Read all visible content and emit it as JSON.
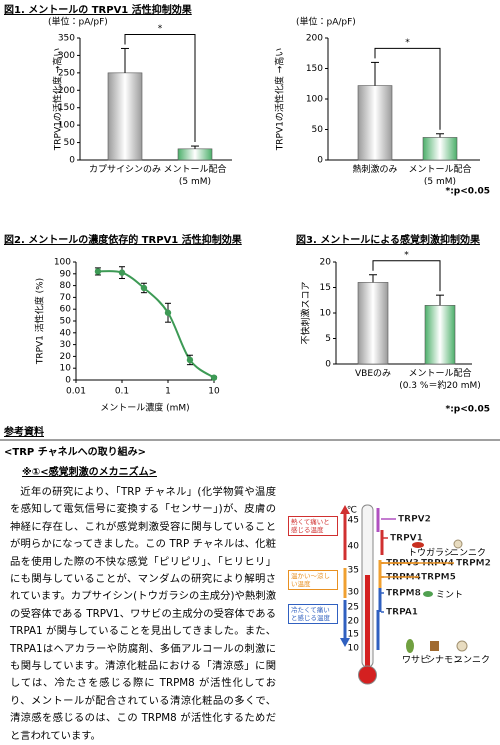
{
  "chart_data": [
    {
      "type": "bar",
      "title": "図1. メントールの TRPV1 活性抑制効果",
      "unit_label": "(単位：pA/pF)",
      "ylabel": "TRPV1の活性化度 →高い",
      "categories": [
        "カプサイシンのみ",
        "メントール配合\n(5 mM)"
      ],
      "values": [
        250,
        32
      ],
      "errors": [
        70,
        8
      ],
      "colors": [
        "#9a9a9a",
        "#4caf6a"
      ],
      "ylim": [
        0,
        350
      ],
      "yticks": [
        0,
        50,
        100,
        150,
        200,
        250,
        300,
        350
      ],
      "annotation": "*"
    },
    {
      "type": "bar",
      "unit_label": "(単位：pA/pF)",
      "ylabel": "TRPV1の活性化度 →高い",
      "categories": [
        "熱刺激のみ",
        "メントール配合\n(5 mM)"
      ],
      "values": [
        122,
        37
      ],
      "errors": [
        38,
        6
      ],
      "colors": [
        "#9a9a9a",
        "#4caf6a"
      ],
      "ylim": [
        0,
        200
      ],
      "yticks": [
        0,
        50,
        100,
        150,
        200
      ],
      "annotation": "*",
      "note": "*:p<0.05"
    },
    {
      "type": "line",
      "title": "図2. メントールの濃度依存的 TRPV1 活性抑制効果",
      "xlabel": "メントール濃度 (mM)",
      "ylabel": "TRPV1 活性化度 (%)",
      "log_x": true,
      "series": [
        {
          "color": "#3d9a55",
          "x": [
            0.03,
            0.1,
            0.3,
            1,
            3,
            10
          ],
          "values": [
            92,
            91,
            78,
            57,
            17,
            2
          ],
          "errors": [
            3,
            5,
            4,
            8,
            4,
            1
          ]
        }
      ],
      "xlim": [
        0.01,
        10
      ],
      "xticks": [
        0.01,
        0.1,
        1,
        10
      ],
      "ylim": [
        0,
        100
      ],
      "yticks": [
        0,
        10,
        20,
        30,
        40,
        50,
        60,
        70,
        80,
        90,
        100
      ]
    },
    {
      "type": "bar",
      "title": "図3. メントールによる感覚刺激抑制効果",
      "ylabel": "不快刺激スコア",
      "categories": [
        "VBEのみ",
        "メントール配合\n(0.3 %＝約20 mM)"
      ],
      "values": [
        16,
        11.5
      ],
      "errors": [
        1.5,
        2
      ],
      "colors": [
        "#9a9a9a",
        "#4caf6a"
      ],
      "ylim": [
        0,
        20
      ],
      "yticks": [
        0,
        5,
        10,
        15,
        20
      ],
      "annotation": "*",
      "note": "*:p<0.05"
    }
  ],
  "reference": {
    "heading": "参考資料",
    "subheading": "<TRP チャネルへの取り組み>",
    "section": "※①<感覚刺激のメカニズム>",
    "paragraph": "近年の研究により、「TRP チャネル」(化学物質や温度を感知して電気信号に変換する「センサー」)が、皮膚の神経に存在し、これが感覚刺激受容に関与していることが明らかになってきました。この TRP チャネルは、化粧品を使用した際の不快な感覚「ピリピリ」、「ヒリヒリ」にも関与していることが、マンダムの研究により解明されています。カプサイシン(トウガラシの主成分)や熱刺激の受容体である TRPV1、ワサビの主成分の受容体である TRPA1 が関与していることを見出してきました。また、TRPA1はヘアカラーや防腐剤、多価アルコールの刺激にも関与しています。清涼化粧品における「清涼感」に関しては、冷たさを感じる際に TRPM8 が活性化しており、メントールが配合されている清涼化粧品の多くで、清涼感を感じるのは、この TRPM8 が活性化するためだと言われています。",
    "diagram": {
      "unit": "℃",
      "temperatures": [
        45,
        40,
        35,
        30,
        25,
        20,
        15,
        10
      ],
      "zones": [
        "熱くて痛いと感じる温度",
        "温かい〜涼しい温度",
        "冷たくて痛いと感じる温度"
      ],
      "channels": [
        "TRPV2",
        "TRPV1",
        "TRPV3",
        "TRPV4",
        "TRPM2",
        "TRPM4",
        "TRPM5",
        "TRPM8",
        "TRPA1"
      ],
      "sources": [
        "トウガラシ",
        "ニンニク",
        "ミント",
        "ワサビ",
        "シナモン",
        "ニンニク"
      ]
    }
  }
}
